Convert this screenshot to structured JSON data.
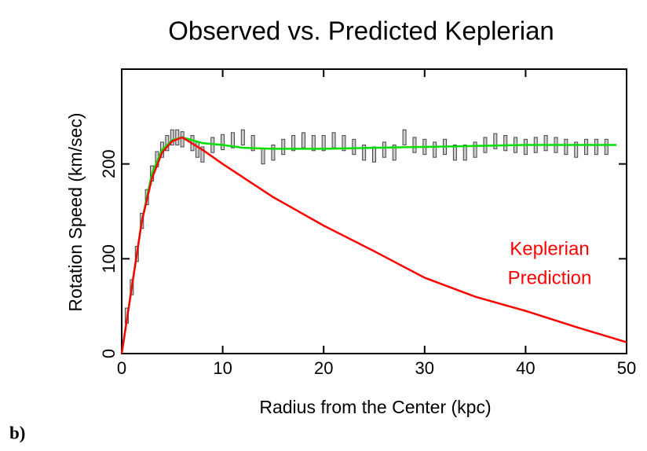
{
  "chart_data": {
    "type": "line",
    "title": "Observed vs. Predicted Keplerian",
    "x_label": "Radius from the Center (kpc)",
    "y_label": "Rotation Speed (km/sec)",
    "annotation": [
      "Keplerian",
      "Prediction"
    ],
    "caption": "b)",
    "xlim": [
      0,
      50
    ],
    "ylim": [
      0,
      300
    ],
    "xticks": [
      0,
      10,
      20,
      30,
      40,
      50
    ],
    "yticks": [
      0,
      100,
      200
    ],
    "observed": {
      "color": "#888888",
      "x": [
        0.5,
        1,
        1.5,
        2,
        2.5,
        3,
        3.5,
        4,
        4.5,
        5,
        5.5,
        6,
        7,
        7.5,
        8,
        9,
        10,
        11,
        12,
        13,
        14,
        15,
        16,
        17,
        18,
        19,
        20,
        21,
        22,
        23,
        24,
        25,
        26,
        27,
        28,
        29,
        30,
        31,
        32,
        33,
        34,
        35,
        36,
        37,
        38,
        39,
        40,
        41,
        42,
        43,
        44,
        45,
        46,
        47,
        48
      ],
      "values": [
        40,
        70,
        105,
        140,
        165,
        190,
        205,
        215,
        222,
        228,
        228,
        226,
        222,
        215,
        210,
        220,
        223,
        225,
        228,
        222,
        208,
        212,
        218,
        222,
        225,
        222,
        222,
        225,
        222,
        218,
        212,
        210,
        215,
        212,
        228,
        220,
        218,
        215,
        218,
        212,
        212,
        215,
        220,
        224,
        222,
        220,
        218,
        220,
        222,
        220,
        218,
        215,
        218,
        218,
        218
      ],
      "errors": [
        8,
        8,
        8,
        8,
        8,
        8,
        8,
        8,
        8,
        8,
        8,
        8,
        8,
        8,
        8,
        8,
        8,
        8,
        8,
        8,
        8,
        8,
        8,
        8,
        8,
        8,
        8,
        8,
        8,
        8,
        8,
        8,
        8,
        8,
        8,
        8,
        8,
        8,
        8,
        8,
        8,
        8,
        8,
        8,
        8,
        8,
        8,
        8,
        8,
        8,
        8,
        8,
        8,
        8,
        8
      ]
    },
    "series": [
      {
        "color": "#00e000",
        "x": [
          0,
          1,
          2,
          3,
          4,
          5,
          6,
          7,
          8,
          10,
          12,
          15,
          20,
          25,
          30,
          35,
          40,
          45,
          49
        ],
        "values": [
          0,
          70,
          140,
          190,
          215,
          225,
          228,
          225,
          222,
          220,
          217,
          216,
          216,
          217,
          218,
          219,
          220,
          220,
          220
        ]
      },
      {
        "color": "#ff0000",
        "x": [
          0,
          1,
          2,
          3,
          4,
          5,
          6,
          8,
          10,
          15,
          20,
          25,
          30,
          35,
          40,
          45,
          50
        ],
        "values": [
          0,
          70,
          140,
          185,
          212,
          224,
          228,
          215,
          200,
          165,
          135,
          108,
          80,
          60,
          45,
          28,
          12
        ]
      }
    ]
  }
}
